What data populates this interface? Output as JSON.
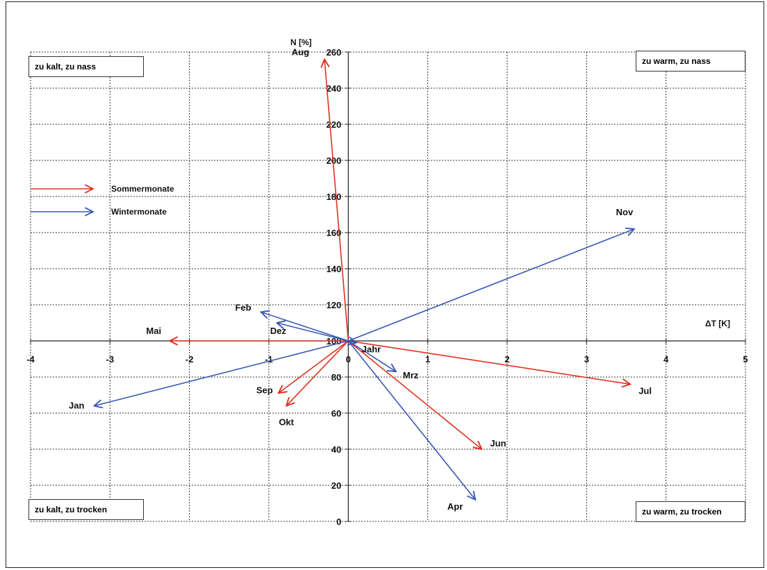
{
  "chart_data": {
    "type": "vector",
    "xlabel": "ΔT [K]",
    "ylabel": "N [%]",
    "xlim": [
      -4,
      5
    ],
    "ylim": [
      0,
      260
    ],
    "origin": [
      0,
      100
    ],
    "x_ticks": [
      -4,
      -3,
      -2,
      -1,
      0,
      1,
      2,
      3,
      4,
      5
    ],
    "x_tick_labels": [
      "-4",
      "-3",
      "-2",
      "-1",
      "0",
      "1",
      "2",
      "3",
      "4",
      "5"
    ],
    "y_ticks": [
      0,
      20,
      40,
      60,
      80,
      100,
      120,
      140,
      160,
      180,
      200,
      220,
      240,
      260
    ],
    "y_tick_labels": [
      "0",
      "20",
      "40",
      "60",
      "80",
      "100",
      "120",
      "140",
      "160",
      "180",
      "200",
      "220",
      "240",
      "260"
    ],
    "grid": true,
    "legend": [
      {
        "name": "Sommermonate",
        "color": "#e0301e"
      },
      {
        "name": "Wintermonate",
        "color": "#3a57b5"
      }
    ],
    "quadrant_labels": {
      "top_left": "zu kalt, zu nass",
      "top_right": "zu warm, zu nass",
      "bottom_left": "zu kalt, zu trocken",
      "bottom_right": "zu warm, zu trocken"
    },
    "series": [
      {
        "name": "Sommermonate",
        "color": "#e0301e",
        "vectors": [
          {
            "label": "Aug",
            "dx": -0.3,
            "n": 256
          },
          {
            "label": "Mai",
            "dx": -2.25,
            "n": 100
          },
          {
            "label": "Sep",
            "dx": -0.88,
            "n": 71
          },
          {
            "label": "Okt",
            "dx": -0.78,
            "n": 64
          },
          {
            "label": "Jun",
            "dx": 1.68,
            "n": 40
          },
          {
            "label": "Jul",
            "dx": 3.55,
            "n": 76
          }
        ]
      },
      {
        "name": "Wintermonate",
        "color": "#3a57b5",
        "vectors": [
          {
            "label": "Nov",
            "dx": 3.6,
            "n": 162
          },
          {
            "label": "Feb",
            "dx": -1.1,
            "n": 116
          },
          {
            "label": "Dez",
            "dx": -0.9,
            "n": 110
          },
          {
            "label": "Jan",
            "dx": -3.2,
            "n": 64
          },
          {
            "label": "Mrz",
            "dx": 0.6,
            "n": 83
          },
          {
            "label": "Apr",
            "dx": 1.6,
            "n": 12
          },
          {
            "label": "Jahr",
            "dx": 0.1,
            "n": 99
          }
        ]
      }
    ]
  }
}
